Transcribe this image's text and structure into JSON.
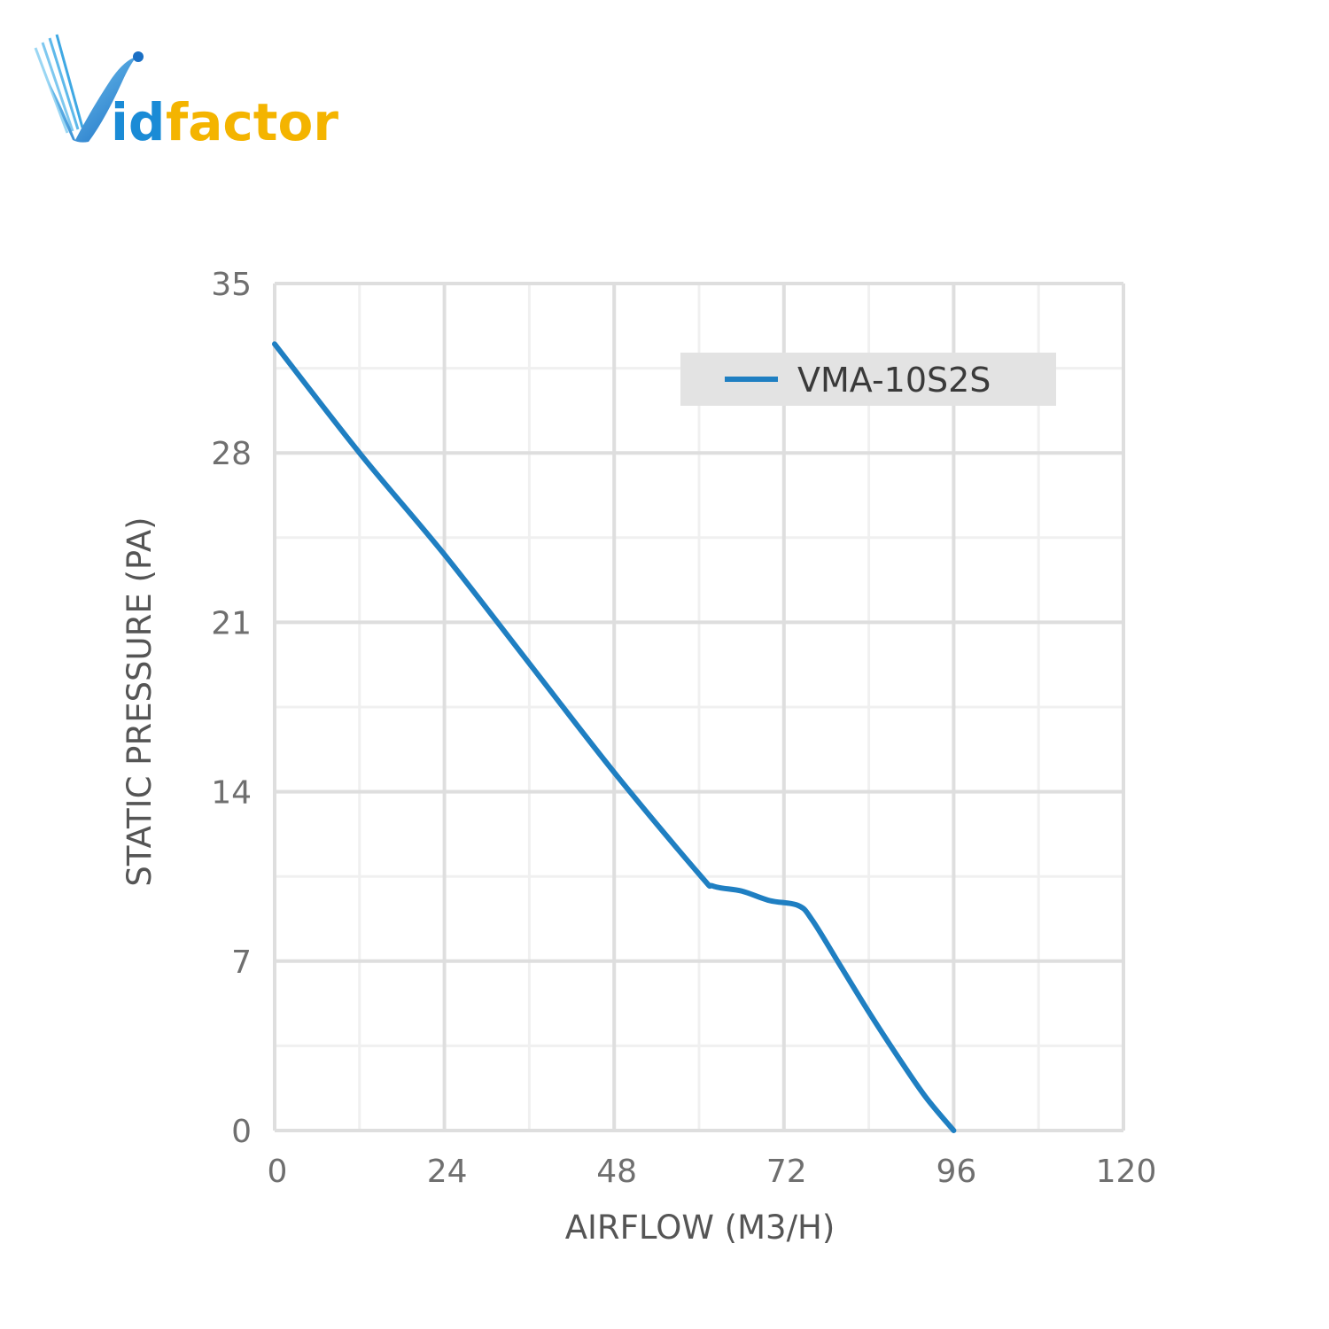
{
  "brand": {
    "name_part1": "id",
    "name_part2": "factor",
    "colors": {
      "primary": "#1a8bd6",
      "secondary": "#f4b400"
    },
    "icon": "bird-v-logo-icon"
  },
  "chart_data": {
    "type": "line",
    "title": "",
    "xlabel": "AIRFLOW (M3/H)",
    "ylabel": "STATIC PRESSURE (PA)",
    "xlim": [
      0,
      120
    ],
    "ylim": [
      0,
      35
    ],
    "x_ticks": [
      "0",
      "24",
      "48",
      "72",
      "96",
      "120"
    ],
    "y_ticks": [
      "0",
      "7",
      "14",
      "21",
      "28",
      "35"
    ],
    "grid": true,
    "legend_position": "top-right",
    "series": [
      {
        "name": "VMA-10S2S",
        "color": "#1f7fc2",
        "points": [
          [
            0,
            32.5
          ],
          [
            12,
            28
          ],
          [
            24,
            23.8
          ],
          [
            36,
            19.3
          ],
          [
            48,
            14.8
          ],
          [
            60,
            10.6
          ],
          [
            62,
            10.1
          ],
          [
            66,
            9.9
          ],
          [
            70,
            9.5
          ],
          [
            74,
            9.3
          ],
          [
            76,
            8.7
          ],
          [
            80,
            6.8
          ],
          [
            84,
            4.9
          ],
          [
            88,
            3.1
          ],
          [
            92,
            1.4
          ],
          [
            96,
            0
          ]
        ]
      }
    ]
  }
}
